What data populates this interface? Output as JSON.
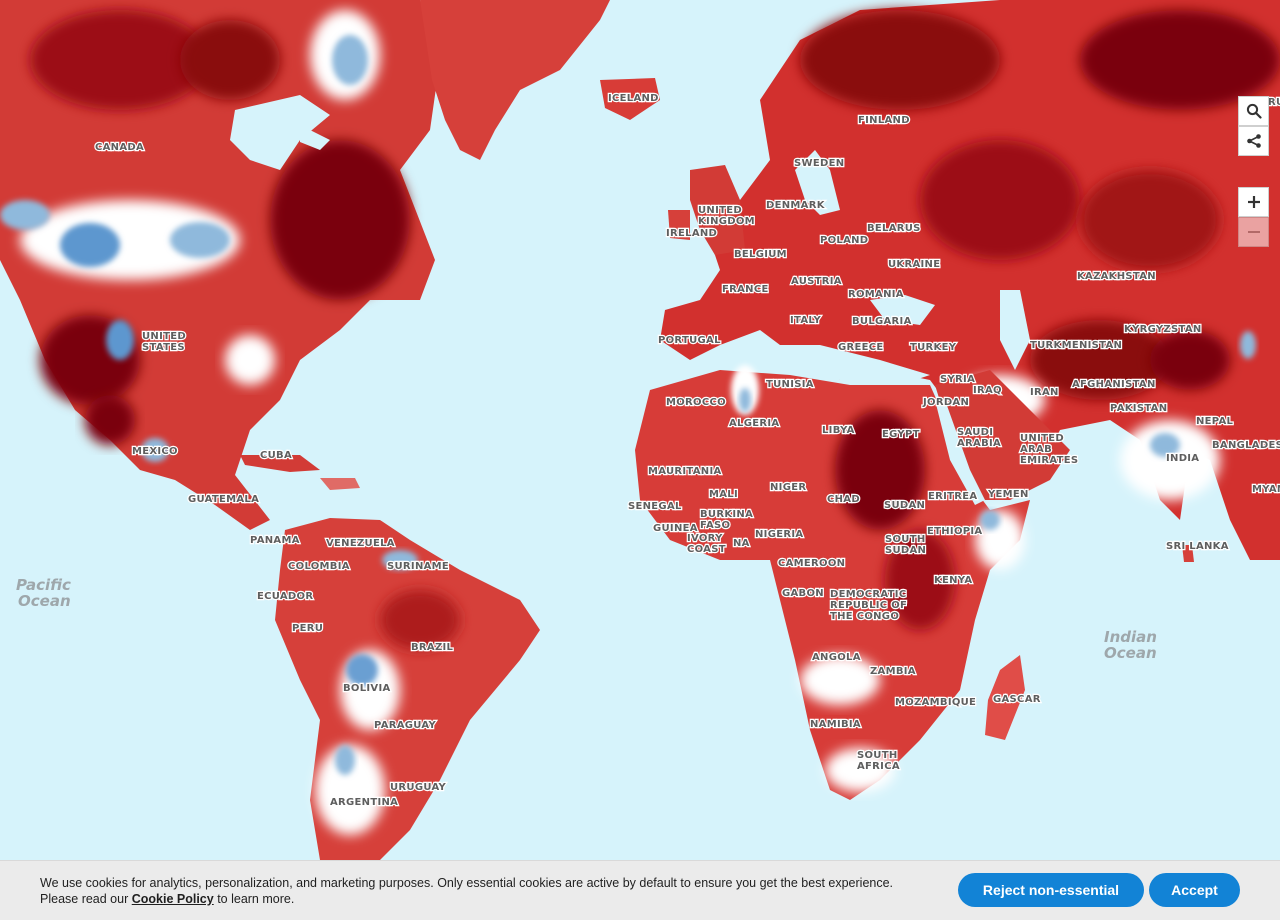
{
  "map": {
    "ocean_color": "#d6f3fb",
    "color_scale": [
      "#0d5fad",
      "#8fb9dc",
      "#ffffff",
      "#ef8a86",
      "#d63a37",
      "#7a0008"
    ],
    "ocean_labels": [
      "Pacific Ocean",
      "Indian Ocean"
    ],
    "country_labels": {
      "canada": "CANADA",
      "united_states": "UNITED STATES",
      "mexico": "MEXICO",
      "cuba": "CUBA",
      "guatemala": "GUATEMALA",
      "panama": "PANAMA",
      "venezuela": "VENEZUELA",
      "colombia": "COLOMBIA",
      "suriname": "SURINAME",
      "ecuador": "ECUADOR",
      "peru": "PERU",
      "brazil": "BRAZIL",
      "bolivia": "BOLIVIA",
      "paraguay": "PARAGUAY",
      "uruguay": "URUGUAY",
      "argentina": "ARGENTINA",
      "iceland": "ICELAND",
      "finland": "FINLAND",
      "sweden": "SWEDEN",
      "denmark": "DENMARK",
      "united_kingdom": "UNITED KINGDOM",
      "ireland": "IRELAND",
      "belgium": "BELGIUM",
      "poland": "POLAND",
      "belarus": "BELARUS",
      "ukraine": "UKRAINE",
      "france": "FRANCE",
      "austria": "AUSTRIA",
      "romania": "ROMANIA",
      "italy": "ITALY",
      "bulgaria": "BULGARIA",
      "portugal": "PORTUGAL",
      "greece": "GREECE",
      "turkey": "TURKEY",
      "kazakhstan": "KAZAKHSTAN",
      "kyrgyzstan": "KYRGYZSTAN",
      "turkmenistan": "TURKMENISTAN",
      "tunisia": "TUNISIA",
      "syria": "SYRIA",
      "iraq": "IRAQ",
      "iran": "IRAN",
      "afghanistan": "AFGHANISTAN",
      "morocco": "MOROCCO",
      "jordan": "JORDAN",
      "pakistan": "PAKISTAN",
      "nepal": "NEPAL",
      "algeria": "ALGERIA",
      "libya": "LIBYA",
      "egypt": "EGYPT",
      "saudi_arabia": "SAUDI ARABIA",
      "uae": "UNITED ARAB EMIRATES",
      "bangladesh": "BANGLADES",
      "india": "INDIA",
      "mauritania": "MAURITANIA",
      "mali": "MALI",
      "niger": "NIGER",
      "chad": "CHAD",
      "sudan": "SUDAN",
      "eritrea": "ERITREA",
      "yemen": "YEMEN",
      "myanmar": "MYAN",
      "senegal": "SENEGAL",
      "burkina_faso": "BURKINA FASO",
      "guinea": "GUINEA",
      "ivory_coast": "IVORY COAST",
      "ghana": "NA",
      "nigeria": "NIGERIA",
      "ethiopia": "ETHIOPIA",
      "south_sudan": "SOUTH SUDAN",
      "sri_lanka": "SRI LANKA",
      "cameroon": "CAMEROON",
      "kenya": "KENYA",
      "gabon": "GABON",
      "drc": "DEMOCRATIC REPUBLIC OF THE CONGO",
      "angola": "ANGOLA",
      "zambia": "ZAMBIA",
      "madagascar": "GASCAR",
      "mozambique": "MOZAMBIQUE",
      "namibia": "NAMIBIA",
      "south_africa": "SOUTH AFRICA",
      "russia_edge": "RU"
    }
  },
  "controls": {
    "search_icon": "search-icon",
    "share_icon": "share-icon",
    "zoom_in_icon": "plus-icon",
    "zoom_out_icon": "minus-icon"
  },
  "cookie_banner": {
    "text_before_link": "We use cookies for analytics, personalization, and marketing purposes. Only essential cookies are active by default to ensure you get the best experience. Please read our ",
    "link_text": "Cookie Policy",
    "text_after_link": " to learn more.",
    "reject_label": "Reject non-essential",
    "accept_label": "Accept",
    "button_color": "#1283d6"
  }
}
